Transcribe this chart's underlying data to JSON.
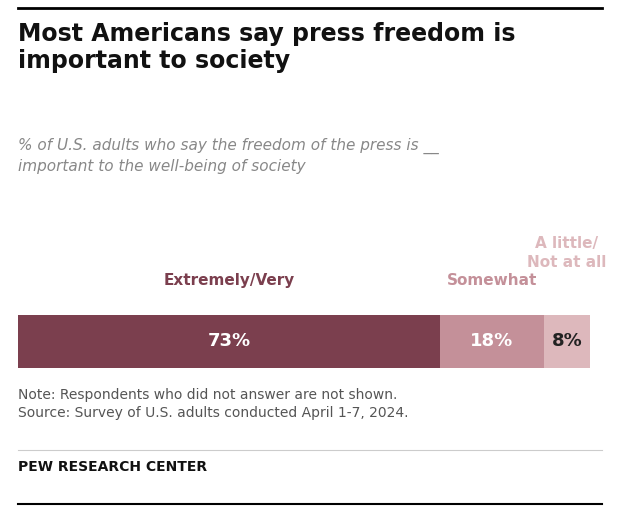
{
  "title": "Most Americans say press freedom is\nimportant to society",
  "subtitle": "% of U.S. adults who say the freedom of the press is __\nimportant to the well-being of society",
  "values": [
    73,
    18,
    8
  ],
  "colors": [
    "#7b3f4e",
    "#c49099",
    "#ddb8bc"
  ],
  "labels": [
    "73%",
    "18%",
    "8%"
  ],
  "label_colors": [
    "white",
    "white",
    "#222222"
  ],
  "cat_labels": [
    "Extremely/Very",
    "Somewhat",
    "A little/\nNot at all"
  ],
  "cat_colors": [
    "#7b3f4e",
    "#c49099",
    "#ddb8bc"
  ],
  "note_line1": "Note: Respondents who did not answer are not shown.",
  "note_line2": "Source: Survey of U.S. adults conducted April 1-7, 2024.",
  "footer": "PEW RESEARCH CENTER",
  "bg_color": "#ffffff"
}
